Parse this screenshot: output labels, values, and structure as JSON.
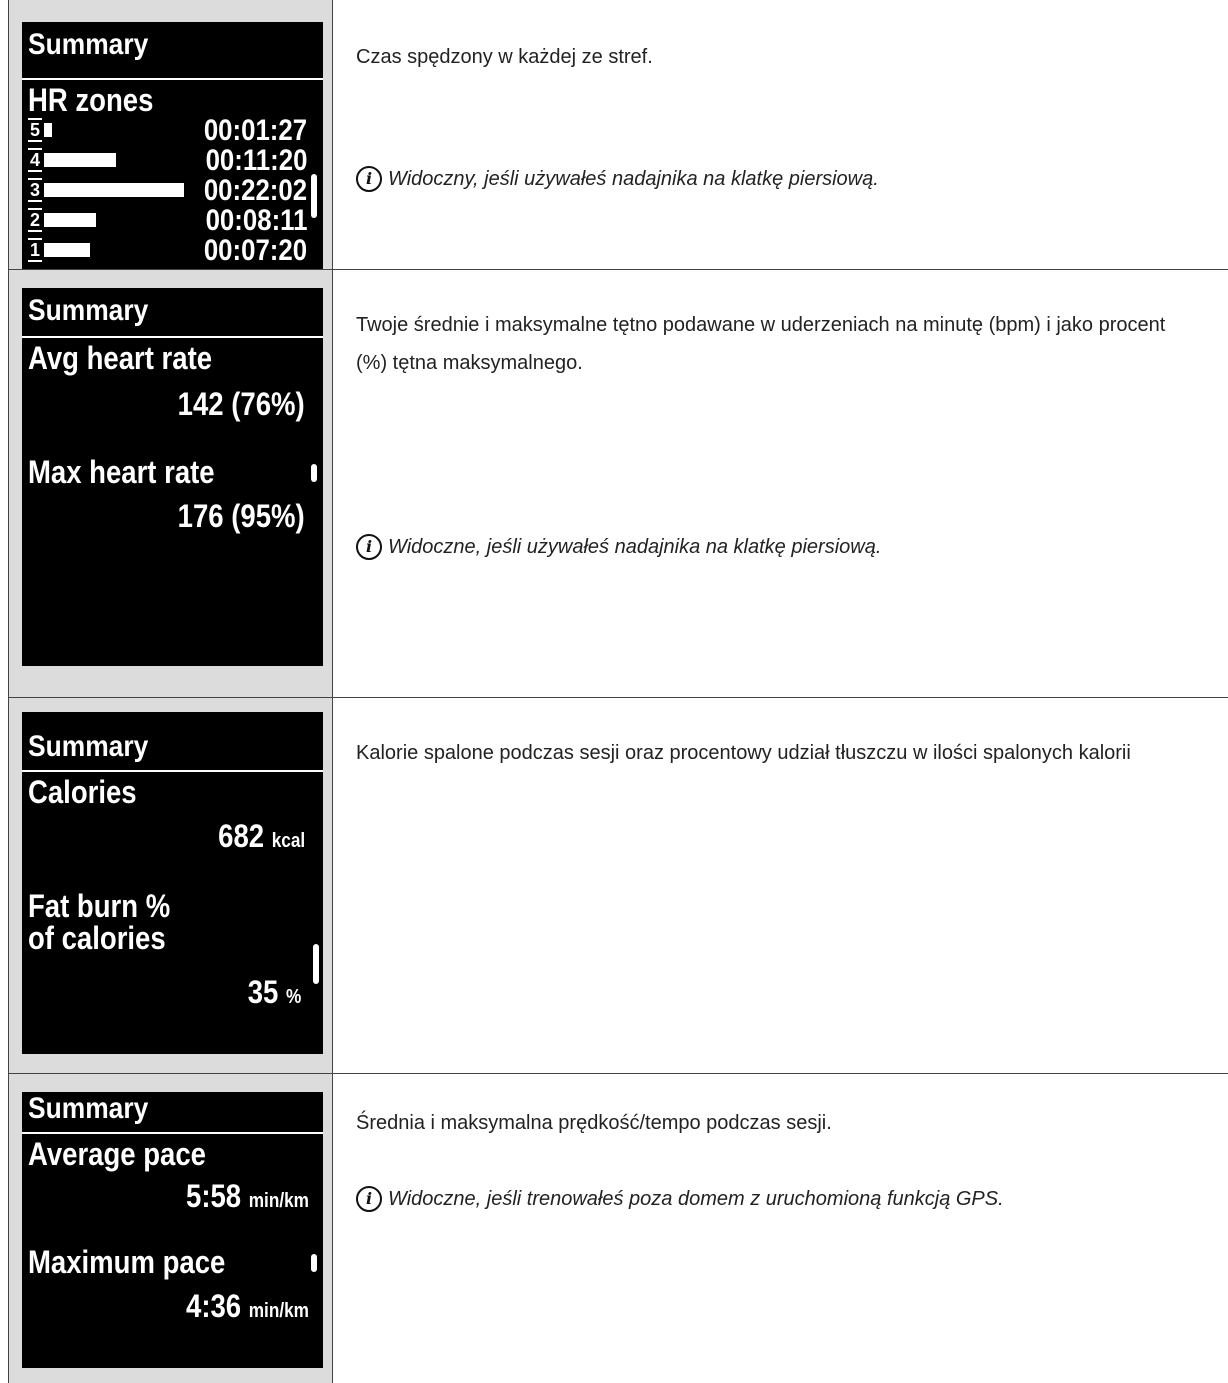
{
  "rows": [
    {
      "screen": {
        "title": "Summary",
        "heading": "HR zones",
        "zones": [
          {
            "num": "5",
            "time": "00:01:27"
          },
          {
            "num": "4",
            "time": "00:11:20"
          },
          {
            "num": "3",
            "time": "00:22:02"
          },
          {
            "num": "2",
            "time": "00:08:11"
          },
          {
            "num": "1",
            "time": "00:07:20"
          }
        ]
      },
      "description": "Czas spędzony w każdej ze stref.",
      "note": "Widoczny, jeśli używałeś nadajnika na klatkę piersiową."
    },
    {
      "screen": {
        "title": "Summary",
        "label1": "Avg heart rate",
        "value1": "142 (76%)",
        "label2": "Max heart rate",
        "value2": "176 (95%)"
      },
      "description": "Twoje średnie i maksymalne tętno podawane w uderzeniach na minutę (bpm) i jako procent (%) tętna maksymalnego.",
      "note": "Widoczne, jeśli używałeś nadajnika na klatkę piersiową."
    },
    {
      "screen": {
        "title": "Summary",
        "label1": "Calories",
        "value1": "682",
        "unit1": "kcal",
        "label2a": "Fat burn %",
        "label2b": "of calories",
        "value2": "35",
        "unit2": "%"
      },
      "description": "Kalorie spalone podczas sesji oraz procentowy udział tłuszczu w ilości spalonych kalorii"
    },
    {
      "screen": {
        "title": "Summary",
        "label1": "Average pace",
        "value1": "5:58",
        "unit1": "min/km",
        "label2": "Maximum pace",
        "value2": "4:36",
        "unit2": "min/km"
      },
      "description": "Średnia i maksymalna prędkość/tempo podczas sesji.",
      "note": "Widoczne, jeśli trenowałeś poza domem z uruchomioną funkcją GPS."
    }
  ],
  "info_icon_glyph": "i"
}
